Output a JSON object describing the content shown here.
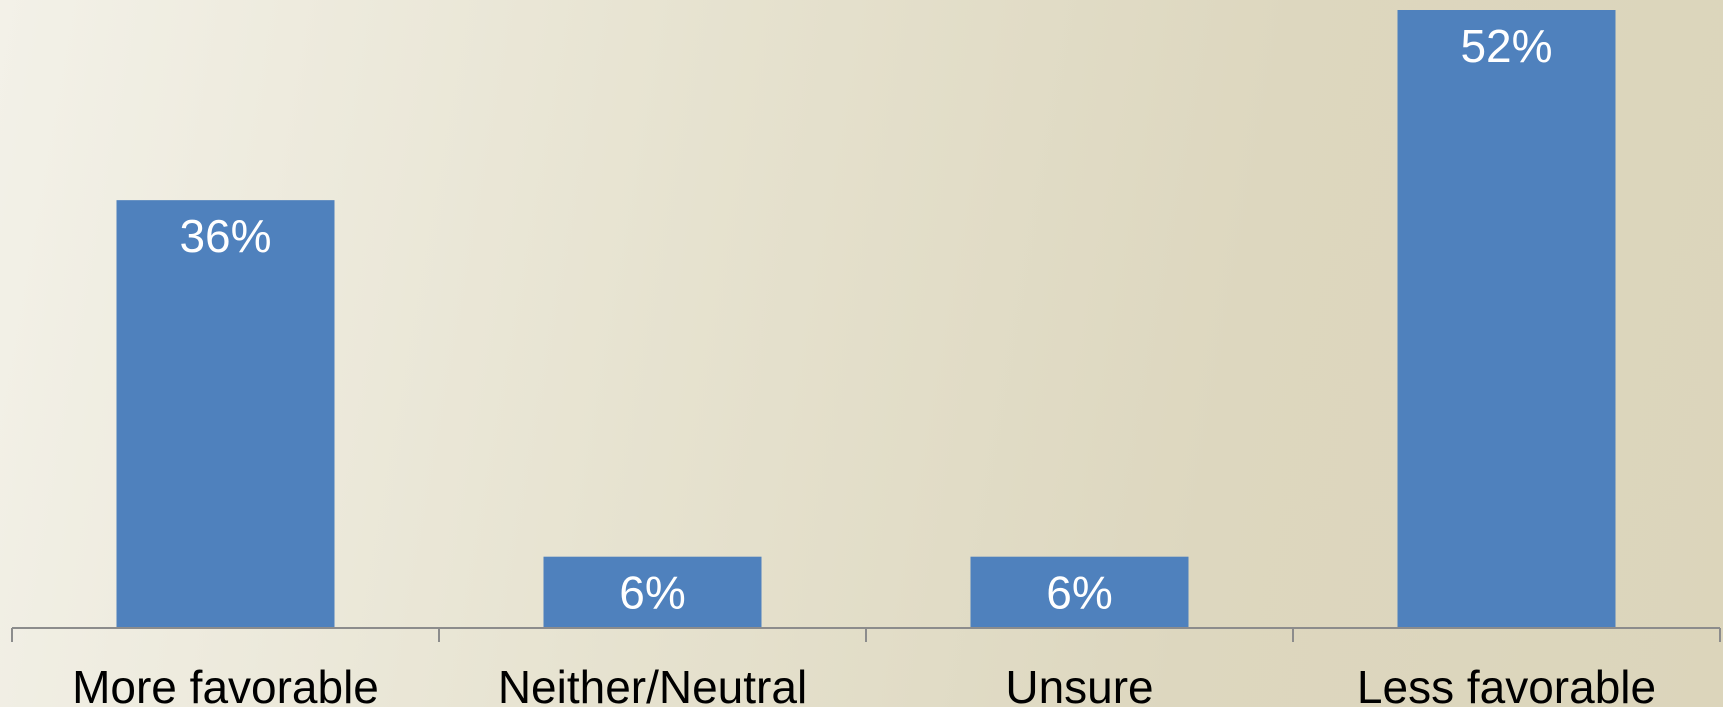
{
  "chart_data": {
    "type": "bar",
    "categories": [
      "More favorable",
      "Neither/Neutral",
      "Unsure",
      "Less favorable"
    ],
    "values": [
      36,
      6,
      6,
      52
    ],
    "data_labels": [
      "36%",
      "6%",
      "6%",
      "52%"
    ],
    "title": "",
    "xlabel": "",
    "ylabel": "",
    "ylim": [
      0,
      52
    ],
    "grid": false,
    "legend": "none"
  },
  "colors": {
    "bar": "#4f81bd",
    "axis": "#8c8c8c",
    "data_label": "#ffffff",
    "category_label": "#000000"
  }
}
